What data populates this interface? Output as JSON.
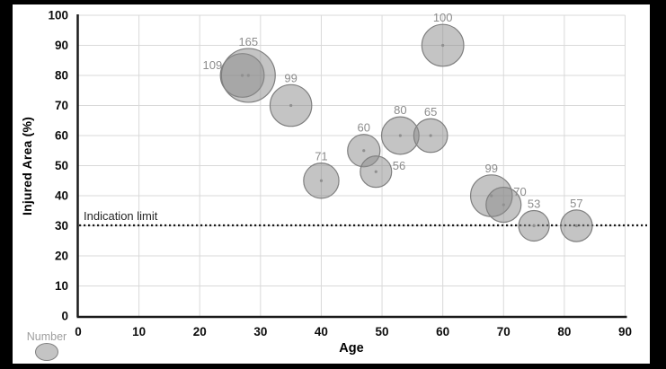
{
  "colors": {
    "canvas_background": "#000000",
    "plot_background": "#ffffff",
    "gridline": "#d9d9d9",
    "axis_line": "#1a1a1a",
    "bubble_fill": "#898989",
    "bubble_fill_opacity": 0.5,
    "bubble_stroke": "#7f7f7f",
    "bubble_label": "#8c8c8c",
    "tick_label": "#0d0d0d",
    "reference_line": "#1a1a1a",
    "legend_text": "#9e9e9e"
  },
  "chart_data": {
    "type": "scatter",
    "subtype": "bubble",
    "title": "",
    "xlabel": "Age",
    "ylabel": "Injured Area (%)",
    "xlim": [
      0,
      90
    ],
    "ylim": [
      0,
      100
    ],
    "x_ticks": [
      0,
      10,
      20,
      30,
      40,
      50,
      60,
      70,
      80,
      90
    ],
    "y_ticks": [
      0,
      10,
      20,
      30,
      40,
      50,
      60,
      70,
      80,
      90,
      100
    ],
    "grid": true,
    "size_variable": "Number",
    "reference_line": {
      "y": 30,
      "label": "Indication limit",
      "style": "dotted"
    },
    "legend": {
      "label": "Number",
      "position": "bottom-left"
    },
    "points": [
      {
        "number": 109,
        "x": 27,
        "y": 80,
        "label_pos": "left"
      },
      {
        "number": 165,
        "x": 28,
        "y": 80,
        "label_pos": "top"
      },
      {
        "number": 99,
        "x": 35,
        "y": 70,
        "label_pos": "top"
      },
      {
        "number": 71,
        "x": 40,
        "y": 45,
        "label_pos": "top"
      },
      {
        "number": 60,
        "x": 47,
        "y": 55,
        "label_pos": "top"
      },
      {
        "number": 56,
        "x": 49,
        "y": 48,
        "label_pos": "right"
      },
      {
        "number": 80,
        "x": 53,
        "y": 60,
        "label_pos": "top"
      },
      {
        "number": 65,
        "x": 58,
        "y": 60,
        "label_pos": "top"
      },
      {
        "number": 100,
        "x": 60,
        "y": 90,
        "label_pos": "top"
      },
      {
        "number": 99,
        "x": 68,
        "y": 40,
        "label_pos": "top"
      },
      {
        "number": 70,
        "x": 70,
        "y": 37,
        "label_pos": "topright"
      },
      {
        "number": 53,
        "x": 75,
        "y": 30,
        "label_pos": "top"
      },
      {
        "number": 57,
        "x": 82,
        "y": 30,
        "label_pos": "top"
      }
    ]
  }
}
